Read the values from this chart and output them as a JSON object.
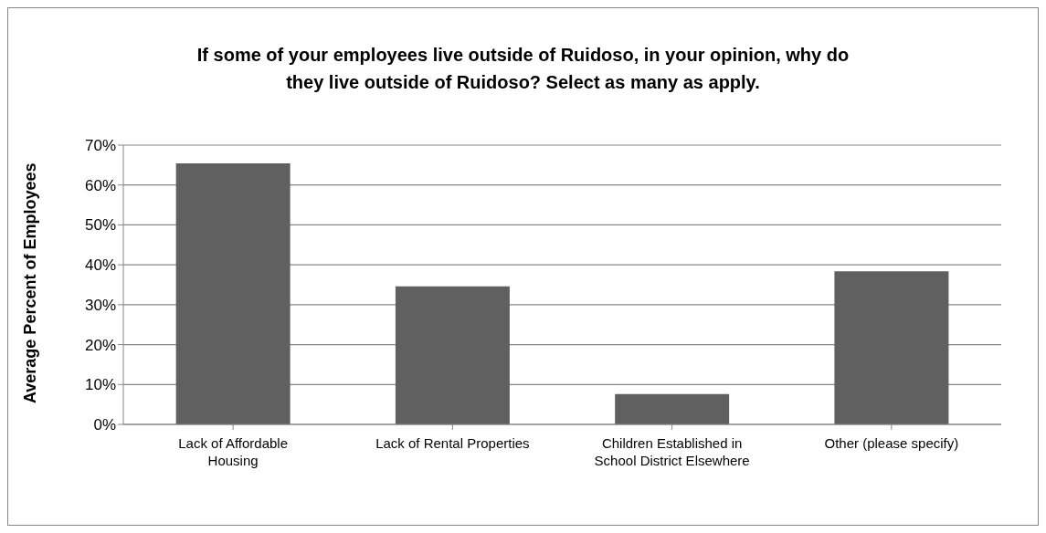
{
  "chart_data": {
    "type": "bar",
    "title": "If some of your employees live outside of Ruidoso, in your opinion, why do they live outside of Ruidoso? Select as many as apply.",
    "ylabel": "Average Percent of Employees",
    "categories": [
      "Lack of Affordable Housing",
      "Lack of Rental Properties",
      "Children Established in School District Elsewhere",
      "Other (please specify)"
    ],
    "values": [
      65.4,
      34.6,
      7.6,
      38.4
    ],
    "color": "#606060",
    "ylim": [
      0,
      70
    ],
    "yticks": [
      {
        "value": 0,
        "label": "0%"
      },
      {
        "value": 10,
        "label": "10%"
      },
      {
        "value": 20,
        "label": "20%"
      },
      {
        "value": 30,
        "label": "30%"
      },
      {
        "value": 40,
        "label": "40%"
      },
      {
        "value": 50,
        "label": "50%"
      },
      {
        "value": 60,
        "label": "60%"
      },
      {
        "value": 70,
        "label": "70%"
      }
    ],
    "grid": "y"
  }
}
